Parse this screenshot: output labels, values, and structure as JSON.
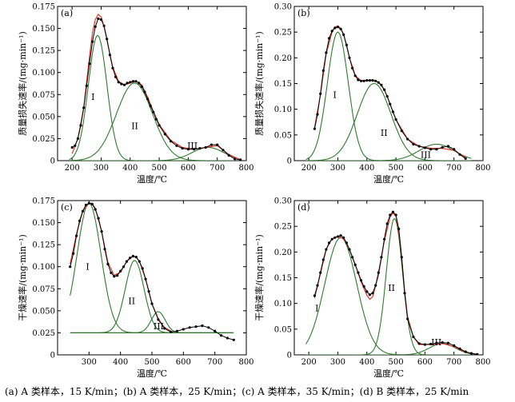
{
  "caption": "(a) A 类样本，15 K/min；(b) A 类样本，25 K/min；(c) A 类样本，35 K/min；(d) B 类样本，25 K/min",
  "colors": {
    "fit": "#e8352b",
    "component": "#2f7a2f",
    "data": "#000000"
  },
  "chart_data": [
    {
      "panel_label": "(a)",
      "type": "line",
      "xlabel": "温度/℃",
      "ylabel": "质量损失速率/(mg·min⁻¹)",
      "xlim": [
        150,
        800
      ],
      "ylim": [
        0,
        0.175
      ],
      "xticks": [
        200,
        300,
        400,
        500,
        600,
        700,
        800
      ],
      "yticks": [
        0,
        0.025,
        0.05,
        0.075,
        0.1,
        0.125,
        0.15,
        0.175
      ],
      "ytick_labels": [
        "0",
        "0.025",
        "0.050",
        "0.075",
        "0.100",
        "0.125",
        "0.150",
        "0.175"
      ],
      "series": [
        {
          "role": "measured",
          "x": [
            200,
            210,
            220,
            230,
            240,
            250,
            260,
            270,
            280,
            290,
            300,
            310,
            320,
            330,
            340,
            350,
            360,
            370,
            380,
            390,
            400,
            410,
            420,
            430,
            440,
            450,
            460,
            470,
            480,
            490,
            500,
            520,
            540,
            560,
            580,
            600,
            620,
            640,
            660,
            680,
            700,
            720,
            740,
            760,
            780
          ],
          "y": [
            0.015,
            0.017,
            0.025,
            0.04,
            0.06,
            0.085,
            0.11,
            0.135,
            0.152,
            0.161,
            0.16,
            0.153,
            0.138,
            0.12,
            0.105,
            0.095,
            0.089,
            0.087,
            0.086,
            0.088,
            0.089,
            0.09,
            0.09,
            0.088,
            0.084,
            0.078,
            0.07,
            0.062,
            0.055,
            0.047,
            0.04,
            0.03,
            0.022,
            0.017,
            0.014,
            0.013,
            0.013,
            0.014,
            0.015,
            0.018,
            0.018,
            0.012,
            0.006,
            0.002,
            0.001
          ]
        },
        {
          "role": "fit",
          "x": [
            200,
            220,
            240,
            260,
            270,
            280,
            290,
            300,
            310,
            320,
            340,
            360,
            380,
            400,
            420,
            440,
            460,
            480,
            500,
            540,
            580,
            620,
            660,
            700,
            740,
            780
          ],
          "y": [
            0.008,
            0.025,
            0.06,
            0.118,
            0.145,
            0.16,
            0.166,
            0.163,
            0.152,
            0.137,
            0.106,
            0.09,
            0.086,
            0.088,
            0.09,
            0.086,
            0.072,
            0.056,
            0.041,
            0.023,
            0.015,
            0.013,
            0.015,
            0.017,
            0.007,
            0.001
          ]
        }
      ],
      "components": [
        {
          "label": "I",
          "amplitude": 0.142,
          "center": 288,
          "width": 32
        },
        {
          "label": "II",
          "amplitude": 0.088,
          "center": 415,
          "width": 62
        },
        {
          "label": "III",
          "amplitude": 0.015,
          "center": 668,
          "width": 55
        }
      ]
    },
    {
      "panel_label": "(b)",
      "type": "line",
      "xlabel": "温度/℃",
      "ylabel": "质量损失速率/(mg·min⁻¹)",
      "xlim": [
        150,
        800
      ],
      "ylim": [
        0,
        0.3
      ],
      "xticks": [
        200,
        300,
        400,
        500,
        600,
        700,
        800
      ],
      "yticks": [
        0,
        0.05,
        0.1,
        0.15,
        0.2,
        0.25,
        0.3
      ],
      "ytick_labels": [
        "0",
        "0.05",
        "0.10",
        "0.15",
        "0.20",
        "0.25",
        "0.30"
      ],
      "series": [
        {
          "role": "measured",
          "x": [
            220,
            230,
            240,
            250,
            260,
            270,
            280,
            290,
            300,
            310,
            320,
            330,
            340,
            350,
            360,
            370,
            380,
            390,
            400,
            410,
            420,
            430,
            440,
            450,
            460,
            470,
            480,
            490,
            500,
            520,
            540,
            560,
            580,
            600,
            620,
            640,
            660,
            680,
            700,
            720,
            740
          ],
          "y": [
            0.062,
            0.09,
            0.13,
            0.175,
            0.21,
            0.238,
            0.252,
            0.258,
            0.26,
            0.256,
            0.245,
            0.225,
            0.2,
            0.18,
            0.165,
            0.157,
            0.155,
            0.155,
            0.156,
            0.156,
            0.156,
            0.155,
            0.152,
            0.147,
            0.138,
            0.125,
            0.11,
            0.095,
            0.08,
            0.058,
            0.042,
            0.032,
            0.028,
            0.025,
            0.022,
            0.022,
            0.026,
            0.028,
            0.022,
            0.012,
            0.004
          ]
        },
        {
          "role": "fit",
          "x": [
            220,
            240,
            260,
            280,
            290,
            300,
            310,
            320,
            340,
            360,
            380,
            400,
            420,
            440,
            460,
            480,
            500,
            540,
            580,
            620,
            660,
            700,
            740
          ],
          "y": [
            0.065,
            0.128,
            0.208,
            0.25,
            0.26,
            0.262,
            0.257,
            0.246,
            0.2,
            0.166,
            0.155,
            0.156,
            0.157,
            0.153,
            0.138,
            0.11,
            0.08,
            0.042,
            0.028,
            0.024,
            0.024,
            0.02,
            0.006
          ]
        }
      ],
      "components": [
        {
          "label": "I",
          "amplitude": 0.25,
          "center": 300,
          "width": 36
        },
        {
          "label": "II",
          "amplitude": 0.15,
          "center": 425,
          "width": 58
        },
        {
          "label": "III",
          "amplitude": 0.032,
          "center": 640,
          "width": 60
        }
      ]
    },
    {
      "panel_label": "(c)",
      "type": "line",
      "xlabel": "温度/℃",
      "ylabel": "干燥速率/(mg·min⁻¹)",
      "xlim": [
        200,
        800
      ],
      "ylim": [
        0,
        0.175
      ],
      "xticks": [
        300,
        400,
        500,
        600,
        700,
        800
      ],
      "yticks": [
        0,
        0.025,
        0.05,
        0.075,
        0.1,
        0.125,
        0.15,
        0.175
      ],
      "ytick_labels": [
        "0",
        "0.025",
        "0.050",
        "0.075",
        "0.100",
        "0.125",
        "0.150",
        "0.175"
      ],
      "series": [
        {
          "role": "measured",
          "x": [
            240,
            250,
            260,
            270,
            280,
            290,
            300,
            310,
            320,
            330,
            340,
            350,
            360,
            370,
            380,
            390,
            400,
            410,
            420,
            430,
            440,
            450,
            460,
            470,
            480,
            490,
            500,
            520,
            540,
            560,
            580,
            600,
            620,
            640,
            660,
            680,
            700,
            720,
            740,
            760
          ],
          "y": [
            0.1,
            0.115,
            0.135,
            0.152,
            0.163,
            0.17,
            0.172,
            0.171,
            0.165,
            0.155,
            0.14,
            0.12,
            0.103,
            0.093,
            0.089,
            0.09,
            0.095,
            0.1,
            0.106,
            0.11,
            0.112,
            0.111,
            0.106,
            0.098,
            0.086,
            0.072,
            0.058,
            0.04,
            0.03,
            0.026,
            0.027,
            0.029,
            0.031,
            0.032,
            0.033,
            0.031,
            0.027,
            0.022,
            0.019,
            0.017
          ]
        },
        {
          "role": "fit",
          "x": [
            240,
            260,
            280,
            300,
            310,
            320,
            340,
            360,
            380,
            400,
            420,
            440,
            450,
            460,
            480,
            500,
            520,
            540,
            560
          ],
          "y": [
            0.103,
            0.137,
            0.163,
            0.172,
            0.172,
            0.166,
            0.14,
            0.105,
            0.09,
            0.094,
            0.106,
            0.112,
            0.111,
            0.106,
            0.086,
            0.058,
            0.041,
            0.031,
            0.027
          ]
        }
      ],
      "baseline": 0.025,
      "components": [
        {
          "label": "I",
          "amplitude": 0.147,
          "center": 300,
          "width": 38
        },
        {
          "label": "II",
          "amplitude": 0.082,
          "center": 445,
          "width": 30
        },
        {
          "label": "III",
          "amplitude": 0.024,
          "center": 520,
          "width": 22
        }
      ]
    },
    {
      "panel_label": "(d)",
      "type": "line",
      "xlabel": "温度/℃",
      "ylabel": "干燥速率/(mg·min⁻¹)",
      "xlim": [
        150,
        800
      ],
      "ylim": [
        0,
        0.3
      ],
      "xticks": [
        200,
        300,
        400,
        500,
        600,
        700,
        800
      ],
      "yticks": [
        0,
        0.05,
        0.1,
        0.15,
        0.2,
        0.25,
        0.3
      ],
      "ytick_labels": [
        "0",
        "0.05",
        "0.10",
        "0.15",
        "0.20",
        "0.25",
        "0.30"
      ],
      "series": [
        {
          "role": "measured",
          "x": [
            220,
            230,
            240,
            250,
            260,
            270,
            280,
            290,
            300,
            310,
            320,
            330,
            340,
            350,
            360,
            370,
            380,
            390,
            400,
            410,
            420,
            430,
            440,
            450,
            460,
            470,
            480,
            490,
            500,
            510,
            520,
            530,
            540,
            560,
            580,
            600,
            620,
            640,
            660,
            680,
            700,
            720,
            740,
            760,
            780
          ],
          "y": [
            0.115,
            0.135,
            0.16,
            0.185,
            0.205,
            0.218,
            0.225,
            0.228,
            0.23,
            0.232,
            0.228,
            0.218,
            0.205,
            0.19,
            0.175,
            0.16,
            0.145,
            0.133,
            0.123,
            0.117,
            0.12,
            0.135,
            0.16,
            0.19,
            0.225,
            0.255,
            0.272,
            0.278,
            0.272,
            0.245,
            0.19,
            0.12,
            0.07,
            0.035,
            0.022,
            0.02,
            0.021,
            0.023,
            0.024,
            0.023,
            0.018,
            0.012,
            0.006,
            0.003,
            0.001
          ]
        },
        {
          "role": "fit",
          "x": [
            220,
            240,
            260,
            280,
            300,
            320,
            340,
            360,
            380,
            400,
            410,
            420,
            440,
            460,
            480,
            490,
            500,
            510,
            520,
            530,
            540,
            560,
            580,
            620,
            660,
            700,
            740,
            780
          ],
          "y": [
            0.11,
            0.158,
            0.205,
            0.226,
            0.23,
            0.226,
            0.205,
            0.176,
            0.142,
            0.116,
            0.108,
            0.113,
            0.155,
            0.222,
            0.268,
            0.276,
            0.27,
            0.24,
            0.19,
            0.125,
            0.075,
            0.035,
            0.02,
            0.02,
            0.022,
            0.016,
            0.005,
            0.001
          ]
        }
      ],
      "components": [
        {
          "label": "I",
          "amplitude": 0.228,
          "center": 310,
          "width": 55
        },
        {
          "label": "II",
          "amplitude": 0.265,
          "center": 495,
          "width": 28
        },
        {
          "label": "III",
          "amplitude": 0.022,
          "center": 660,
          "width": 45
        }
      ]
    }
  ]
}
